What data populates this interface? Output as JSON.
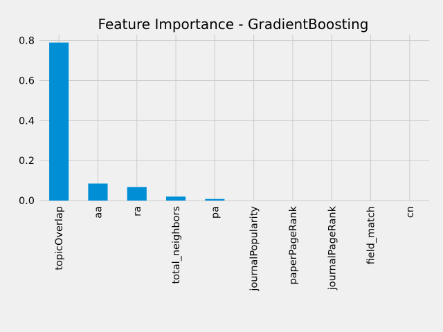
{
  "chart_data": {
    "type": "bar",
    "title": "Feature Importance - GradientBoosting",
    "xlabel": "",
    "ylabel": "",
    "categories": [
      "topicOverlap",
      "aa",
      "ra",
      "total_neighbors",
      "pa",
      "journalPopularity",
      "paperPageRank",
      "journalPageRank",
      "field_match",
      "cn"
    ],
    "values": [
      0.79,
      0.085,
      0.068,
      0.02,
      0.008,
      0.0,
      0.0,
      0.0,
      0.0,
      0.0
    ],
    "yticks": [
      "0.0",
      "0.2",
      "0.4",
      "0.6",
      "0.8"
    ],
    "ylim": [
      0,
      0.83
    ],
    "grid": true,
    "legend": "none",
    "bar_color": "#008fd5",
    "background_color": "#f0f0f0",
    "grid_color": "#cbcbcb"
  }
}
